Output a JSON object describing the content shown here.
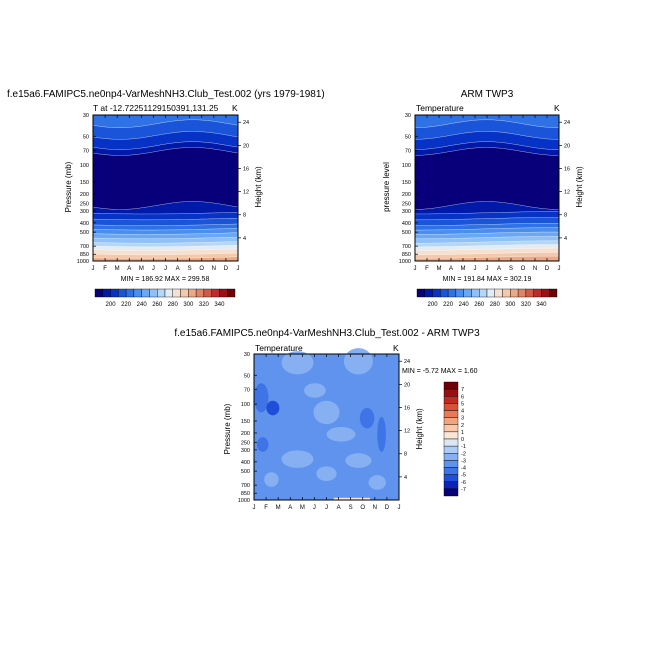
{
  "colors": {
    "frame": "#000000",
    "background": "#ffffff",
    "abs_scale": [
      "#08007a",
      "#0019a8",
      "#0633c6",
      "#1a55d9",
      "#2e72e6",
      "#4a8ff0",
      "#6aa8f5",
      "#8fc0f7",
      "#b5d6f6",
      "#e4ecf3",
      "#f6e1d1",
      "#f5c8a9",
      "#eda986",
      "#df8466",
      "#cf5b46",
      "#bb2c2a",
      "#9c0f16",
      "#6e0008"
    ],
    "diff_scale": [
      "#08007a",
      "#0d22b8",
      "#1f4fd8",
      "#3e74e6",
      "#5f93ed",
      "#86b0f2",
      "#aecbf5",
      "#dce7f4",
      "#fbe6d6",
      "#f8c8a8",
      "#f2a47e",
      "#e77b58",
      "#d5523a",
      "#bd2b22",
      "#9a0d10",
      "#6e0008"
    ]
  },
  "panel_left": {
    "title": "f.e15a6.FAMIPC5.ne0np4-VarMeshNH3.Club_Test.002 (yrs 1979-1981)",
    "left_string": "T at -12.72251129150391,131.25",
    "right_string": "K",
    "stats": "MIN = 186.92  MAX = 299.58",
    "ylabel": "Pressure (mb)",
    "ylabel_right": "Height (km)"
  },
  "panel_right": {
    "title": "ARM TWP3",
    "left_string": "Temperature",
    "right_string": "K",
    "stats": "MIN = 191.84  MAX = 302.19",
    "ylabel": "pressure level",
    "ylabel_right": "Height (km)"
  },
  "panel_diff": {
    "title": "f.e15a6.FAMIPC5.ne0np4-VarMeshNH3.Club_Test.002 - ARM TWP3",
    "left_string": "Temperature",
    "right_string": "K",
    "stats": "MIN = -5.72  MAX =   1.60",
    "ylabel": "Pressure (mb)",
    "ylabel_right": "Height (km)"
  },
  "chart_data": [
    {
      "type": "heatmap",
      "name": "model_temperature",
      "title": "f.e15a6.FAMIPC5.ne0np4-VarMeshNH3.Club_Test.002 (yrs 1979-1981)",
      "xlabel": "",
      "ylabel": "Pressure (mb)",
      "x_ticks": [
        "J",
        "F",
        "M",
        "A",
        "M",
        "J",
        "J",
        "A",
        "S",
        "O",
        "N",
        "D",
        "J"
      ],
      "y_pressure_ticks": [
        "30",
        "50",
        "70",
        "100",
        "150",
        "200",
        "250",
        "300",
        "400",
        "500",
        "700",
        "850",
        "1000"
      ],
      "y_height_ticks": [
        "24",
        "20",
        "16",
        "12",
        "8",
        "4"
      ],
      "colorbar_labels": [
        "200",
        "220",
        "240",
        "260",
        "280",
        "300",
        "320",
        "340"
      ],
      "value_range": [
        186.92,
        299.58
      ],
      "units": "K"
    },
    {
      "type": "heatmap",
      "name": "obs_temperature",
      "title": "ARM TWP3",
      "xlabel": "",
      "ylabel": "pressure level",
      "x_ticks": [
        "J",
        "F",
        "M",
        "A",
        "M",
        "J",
        "J",
        "A",
        "S",
        "O",
        "N",
        "D",
        "J"
      ],
      "y_pressure_ticks": [
        "30",
        "50",
        "70",
        "100",
        "150",
        "200",
        "250",
        "300",
        "400",
        "500",
        "700",
        "850",
        "1000"
      ],
      "y_height_ticks": [
        "24",
        "20",
        "16",
        "12",
        "8",
        "4"
      ],
      "colorbar_labels": [
        "200",
        "220",
        "240",
        "260",
        "280",
        "300",
        "320",
        "340"
      ],
      "value_range": [
        191.84,
        302.19
      ],
      "units": "K"
    },
    {
      "type": "heatmap",
      "name": "temperature_difference",
      "title": "f.e15a6.FAMIPC5.ne0np4-VarMeshNH3.Club_Test.002 - ARM TWP3",
      "xlabel": "",
      "ylabel": "Pressure (mb)",
      "x_ticks": [
        "J",
        "F",
        "M",
        "A",
        "M",
        "J",
        "J",
        "A",
        "S",
        "O",
        "N",
        "D",
        "J"
      ],
      "y_pressure_ticks": [
        "30",
        "50",
        "70",
        "100",
        "150",
        "200",
        "250",
        "300",
        "400",
        "500",
        "700",
        "850",
        "1000"
      ],
      "y_height_ticks": [
        "24",
        "20",
        "16",
        "12",
        "8",
        "4"
      ],
      "colorbar_labels": [
        "7",
        "6",
        "5",
        "4",
        "3",
        "2",
        "1",
        "0",
        "-1",
        "-2",
        "-3",
        "-4",
        "-5",
        "-6",
        "-7"
      ],
      "value_range": [
        -5.72,
        1.6
      ],
      "units": "K"
    }
  ]
}
